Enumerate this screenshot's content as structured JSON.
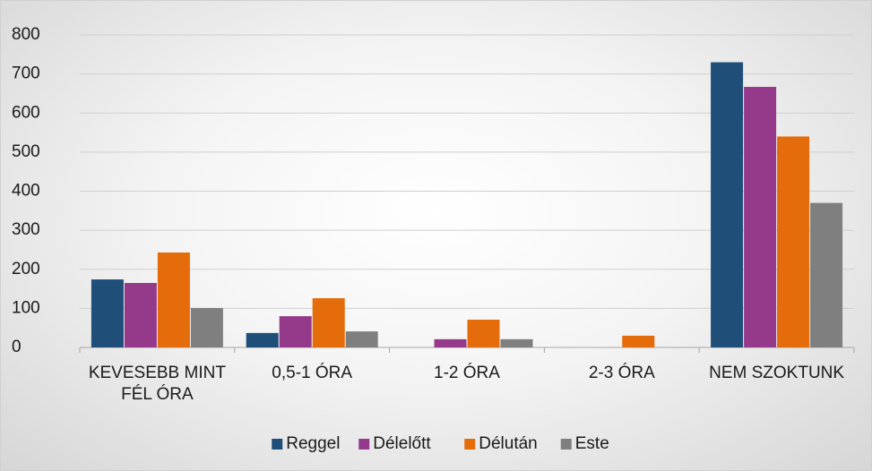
{
  "chart_data": {
    "type": "bar",
    "categories": [
      "KEVESEBB MINT FÉL ÓRA",
      "0,5-1 ÓRA",
      "1-2 ÓRA",
      "2-3 ÓRA",
      "NEM SZOKTUNK"
    ],
    "series": [
      {
        "name": "Reggel",
        "color": "#1f4e79",
        "values": [
          174,
          37,
          0,
          0,
          730
        ]
      },
      {
        "name": "Délelőtt",
        "color": "#953a8b",
        "values": [
          165,
          80,
          21,
          0,
          667
        ]
      },
      {
        "name": "Délután",
        "color": "#e46c0a",
        "values": [
          243,
          126,
          71,
          30,
          540
        ]
      },
      {
        "name": "Este",
        "color": "#7f7f7f",
        "values": [
          101,
          41,
          21,
          0,
          370
        ]
      }
    ],
    "ylim": [
      0,
      800
    ],
    "yticks": [
      0,
      100,
      200,
      300,
      400,
      500,
      600,
      700,
      800
    ],
    "grid": true,
    "legend": "bottom"
  }
}
